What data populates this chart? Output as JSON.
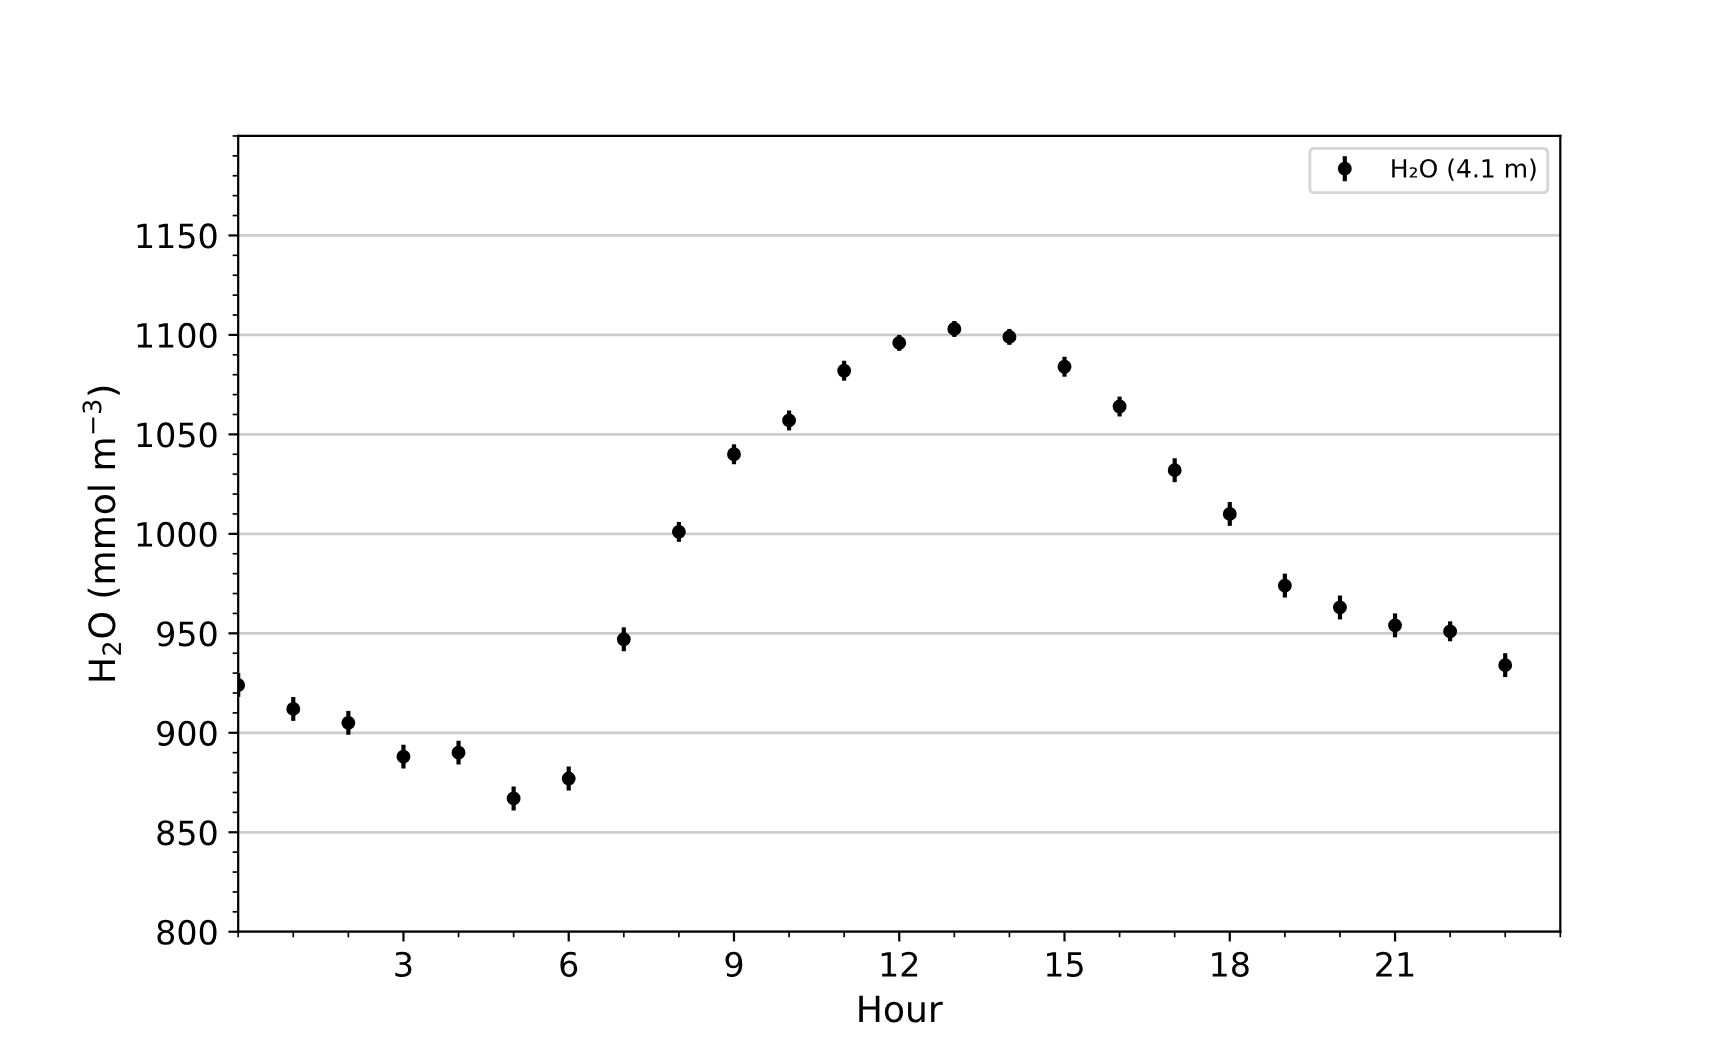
{
  "chart_data": {
    "type": "scatter",
    "xlabel": "Hour",
    "ylabel": "H$_{2}$O (mmol m$^{−3}$)",
    "x": [
      0,
      1,
      2,
      3,
      4,
      5,
      6,
      7,
      8,
      9,
      10,
      11,
      12,
      13,
      14,
      15,
      16,
      17,
      18,
      19,
      20,
      21,
      22,
      23
    ],
    "series": [
      {
        "name": "H₂O (4.1 m)",
        "color": "#000000",
        "values": [
          924,
          912,
          905,
          888,
          890,
          867,
          877,
          947,
          1001,
          1040,
          1057,
          1082,
          1096,
          1103,
          1099,
          1084,
          1064,
          1032,
          1010,
          974,
          963,
          954,
          951,
          934
        ],
        "errors": [
          6,
          6,
          6,
          6,
          6,
          6,
          6,
          6,
          5,
          5,
          5,
          5,
          4,
          4,
          4,
          5,
          5,
          6,
          6,
          6,
          6,
          6,
          5,
          6
        ]
      }
    ],
    "marker": "circle",
    "xlim": [
      0,
      24
    ],
    "ylim": [
      800,
      1200
    ],
    "xticks": [
      3,
      6,
      9,
      12,
      15,
      18,
      21
    ],
    "yticks": [
      800,
      850,
      900,
      950,
      1000,
      1050,
      1100,
      1150
    ],
    "grid": "y",
    "legend": "top right"
  }
}
